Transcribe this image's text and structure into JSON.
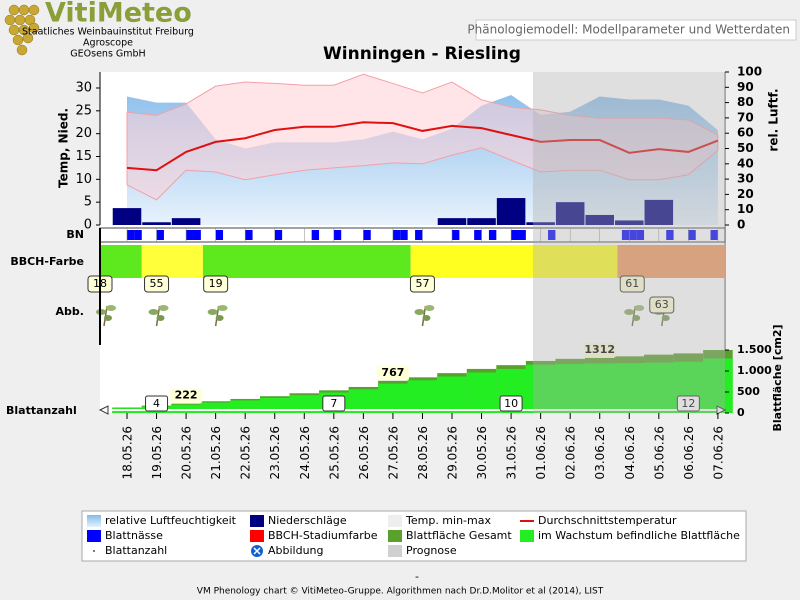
{
  "header": {
    "logo": "VitiMeteo",
    "lines": [
      "Staatliches Weinbauinstitut Freiburg",
      "Agroscope",
      "GEOsens GmbH"
    ],
    "subtitle": "Phänologiemodell: Modellparameter und Wetterdaten"
  },
  "chart_data": {
    "type": "phenology",
    "title": "Winningen - Riesling",
    "categories": [
      "18.05.26",
      "19.05.26",
      "20.05.26",
      "21.05.26",
      "22.05.26",
      "23.05.26",
      "24.05.26",
      "25.05.26",
      "26.05.26",
      "27.05.26",
      "28.05.26",
      "29.05.26",
      "30.05.26",
      "31.05.26",
      "01.06.26",
      "02.06.26",
      "03.06.26",
      "04.06.26",
      "05.06.26",
      "06.06.26",
      "07.06.26"
    ],
    "xlim": [
      -0.914,
      20.24
    ],
    "ylabel": "Temp, Nied.",
    "y2label": "rel. Luftf.",
    "ylim": [
      0,
      33.5
    ],
    "yticks": [
      0,
      5,
      10,
      15,
      20,
      25,
      30
    ],
    "y2lim": [
      0,
      100
    ],
    "y2ticks": [
      0,
      10,
      20,
      30,
      40,
      50,
      60,
      70,
      80,
      90,
      100
    ],
    "series": [
      {
        "name": "relative Luftfeuchtigkeit",
        "color": "#8cbfea",
        "axis": "y2",
        "values": [
          84,
          80,
          80,
          56,
          50,
          54,
          54,
          54,
          56,
          61,
          56,
          63,
          78,
          85,
          72,
          74,
          84,
          82,
          82,
          78,
          62
        ]
      },
      {
        "name": "Niederschläge",
        "color": "#000080",
        "values": [
          3.7,
          0.6,
          1.5,
          0,
          0,
          0,
          0,
          0,
          0,
          0,
          0,
          1.5,
          1.5,
          5.9,
          0.6,
          5,
          2.2,
          1,
          5.5,
          0,
          0
        ]
      },
      {
        "name": "Temp. min-max",
        "color": "#f4a0a8",
        "values": [
          24.7,
          24,
          26.5,
          30.4,
          31.3,
          31,
          30.6,
          30.6,
          33,
          31,
          28.9,
          31.3,
          27.4,
          25.8,
          25.2,
          24,
          23.4,
          23.4,
          23.4,
          23,
          19.7
        ],
        "min": [
          8.8,
          5.5,
          12,
          11.6,
          9.9,
          11,
          12,
          12.5,
          13,
          13.6,
          13.4,
          15.3,
          16.9,
          14.2,
          11.6,
          12,
          12,
          9.9,
          9.9,
          11,
          16.4
        ]
      },
      {
        "name": "Durchschnittstemperatur",
        "color": "#e01010",
        "values": [
          12.5,
          12,
          16,
          18.2,
          19,
          20.8,
          21.5,
          21.5,
          22.5,
          22.3,
          20.6,
          21.7,
          21.2,
          19.7,
          18.2,
          18.6,
          18.6,
          15.8,
          16.6,
          16,
          18.5
        ]
      }
    ],
    "leaf_wetness": {
      "label": "BN",
      "name": "Blattnässe",
      "color": "#0000ff",
      "values": [
        1,
        1,
        0,
        0,
        1,
        0,
        0,
        0,
        1,
        1,
        0,
        0,
        1,
        0,
        0,
        0,
        1,
        0,
        0,
        0,
        1,
        0,
        0,
        0,
        0,
        1,
        0,
        0,
        1,
        0,
        0,
        0,
        1,
        0,
        0,
        0,
        1,
        1,
        0,
        1,
        0,
        0,
        0,
        0,
        1,
        0,
        0,
        1,
        0,
        1,
        0,
        0,
        1,
        1,
        0,
        0,
        0,
        1,
        0,
        0,
        0,
        0,
        0,
        0,
        0,
        0,
        0,
        1,
        1,
        1,
        0,
        0,
        0,
        1,
        0,
        0,
        1,
        0,
        0,
        1,
        0,
        0,
        0,
        0
      ]
    },
    "bbch": {
      "label": "BBCH-Farbe",
      "name": "BBCH-Stadiumfarbe",
      "color": "#ff0000",
      "segments": [
        {
          "start": -0.914,
          "color": "#5ee81e"
        },
        {
          "start": 0.5,
          "color": "#ffff3a"
        },
        {
          "start": 2.57,
          "color": "#5ee81e"
        },
        {
          "start": 9.6,
          "color": "#ffff20"
        },
        {
          "start": 16.6,
          "color": "#f09a60"
        }
      ],
      "markers": [
        {
          "stage": 18,
          "at": -0.914
        },
        {
          "stage": 55,
          "at": 1.0
        },
        {
          "stage": 19,
          "at": 3.0
        },
        {
          "stage": 57,
          "at": 10.0
        },
        {
          "stage": 61,
          "at": 17.1
        },
        {
          "stage": 63,
          "at": 18.1
        }
      ]
    },
    "images": {
      "label": "Abb.",
      "name": "Abbildung",
      "color": "#1060d0"
    },
    "leaf_area": {
      "label": "Blattfläche [cm2]",
      "ylim": [
        0,
        1620
      ],
      "yticks": [
        0,
        500,
        {
          "value": 1000,
          "label": "1.000"
        },
        {
          "value": 1500,
          "label": "1.500"
        }
      ],
      "series": [
        {
          "name": "Blattfläche Gesamt",
          "color": "#5aa02c",
          "values": [
            130,
            175,
            222,
            280,
            335,
            400,
            470,
            540,
            620,
            767,
            850,
            950,
            1050,
            1140,
            1240,
            1290,
            1312,
            1350,
            1390,
            1420,
            1500
          ]
        },
        {
          "name": "im Wachstum befindliche Blattfläche",
          "color": "#22ee22",
          "values": [
            115,
            155,
            200,
            250,
            300,
            360,
            425,
            490,
            565,
            700,
            780,
            870,
            965,
            1050,
            1150,
            1170,
            1180,
            1190,
            1200,
            1220,
            1300
          ]
        }
      ],
      "labels": [
        {
          "at": 2,
          "value": 222
        },
        {
          "at": 9,
          "value": 767
        },
        {
          "at": 16,
          "value": 1312
        }
      ]
    },
    "leaf_count": {
      "label": "Blattanzahl",
      "name": "Blattanzahl",
      "labels": [
        {
          "at": 1,
          "value": 4
        },
        {
          "at": 7,
          "value": 7
        },
        {
          "at": 13,
          "value": 10
        },
        {
          "at": 19,
          "value": 12
        }
      ]
    },
    "forecast": {
      "name": "Prognose",
      "start": 13.74,
      "color": "#b0b0b0"
    }
  },
  "note": "-",
  "footer": "VM Phenology chart © VitiMeteo-Gruppe. Algorithmen nach Dr.D.Molitor et al (2014), LIST"
}
